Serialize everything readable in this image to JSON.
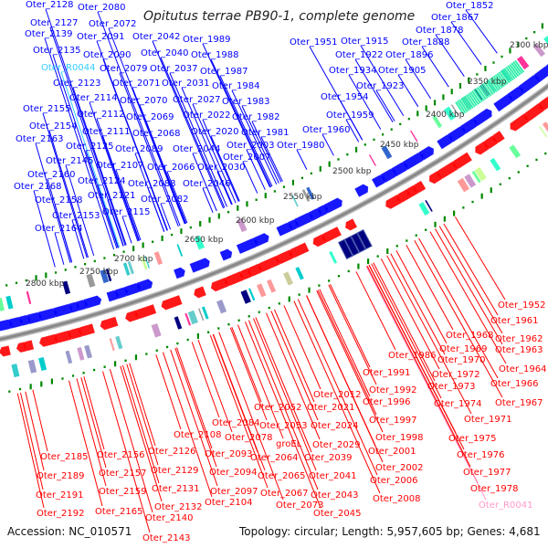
{
  "title": "Opitutus terrae PB90-1, complete genome",
  "footer": {
    "accession": "Accession: NC_010571",
    "summary": "Topology: circular; Length: 5,957,605 bp; Genes: 4,681"
  },
  "colors": {
    "forward": "#0000ff",
    "reverse": "#ff0000",
    "rna_forward": "#33ccff",
    "rna_reverse": "#ff99cc",
    "backbone": "#888888",
    "gc_marks": "#008800"
  },
  "ticks": [
    "2300 kbp",
    "2350 kbp",
    "2400 kbp",
    "2450 kbp",
    "2500 kbp",
    "2550 kbp",
    "2600 kbp",
    "2650 kbp",
    "2700 kbp",
    "2750 kbp",
    "2800 kbp"
  ],
  "forward_labels": [
    "Oter_2128",
    "Oter_2080",
    "Oter_2127",
    "Oter_2072",
    "Oter_2139",
    "Oter_2091",
    "Oter_2042",
    "Oter_1989",
    "Oter_2135",
    "Oter_2090",
    "Oter_2040",
    "Oter_1988",
    "Oter_R0044",
    "Oter_2079",
    "Oter_2037",
    "Oter_1987",
    "Oter_2123",
    "Oter_2071",
    "Oter_2031",
    "Oter_1984",
    "Oter_2114",
    "Oter_2070",
    "Oter_2027",
    "Oter_1983",
    "Oter_2155",
    "Oter_2112",
    "Oter_2069",
    "Oter_2022",
    "Oter_1982",
    "Oter_2154",
    "Oter_2111",
    "Oter_2068",
    "Oter_2020",
    "Oter_1981",
    "Oter_2163",
    "Oter_2125",
    "Oter_2089",
    "Oter_2044",
    "Oter_2003",
    "Oter_2145",
    "Oter_2107",
    "Oter_2066",
    "Oter_2030",
    "Oter_2007",
    "Oter_1980",
    "Oter_2160",
    "Oter_2124",
    "Oter_2088",
    "Oter_2046",
    "Oter_2168",
    "Oter_2158",
    "Oter_2121",
    "Oter_2082",
    "Oter_2153",
    "Oter_2115",
    "Oter_2164",
    "Oter_1852",
    "Oter_1867",
    "Oter_1878",
    "Oter_1888",
    "Oter_1951",
    "Oter_1915",
    "Oter_1922",
    "Oter_1896",
    "Oter_1934",
    "Oter_1905",
    "Oter_1923",
    "Oter_1954",
    "Oter_1959",
    "Oter_1960"
  ],
  "reverse_labels": [
    "Oter_1952",
    "Oter_1961",
    "Oter_1968",
    "Oter_1962",
    "Oter_1963",
    "Oter_1986",
    "Oter_1969",
    "Oter_1970",
    "Oter_1964",
    "Oter_1991",
    "Oter_1972",
    "Oter_1966",
    "Oter_1973",
    "Oter_1992",
    "Oter_1996",
    "Oter_1967",
    "Oter_1974",
    "Oter_1971",
    "Oter_1997",
    "Oter_1998",
    "Oter_1975",
    "Oter_2001",
    "Oter_1976",
    "Oter_2002",
    "Oter_1977",
    "Oter_2006",
    "Oter_1978",
    "Oter_2008",
    "Oter_R0041",
    "Oter_2012",
    "Oter_2021",
    "Oter_2052",
    "Oter_2024",
    "Oter_2053",
    "Oter_2029",
    "groEL",
    "Oter_2064",
    "Oter_2039",
    "Oter_2065",
    "Oter_2041",
    "Oter_2067",
    "Oter_2043",
    "Oter_2073",
    "Oter_2045",
    "Oter_2108",
    "Oter_2084",
    "Oter_2078",
    "Oter_2093",
    "Oter_2094",
    "Oter_2097",
    "Oter_2104",
    "Oter_2126",
    "Oter_2129",
    "Oter_2131",
    "Oter_2132",
    "Oter_2140",
    "Oter_2143",
    "Oter_2156",
    "Oter_2157",
    "Oter_2159",
    "Oter_2165",
    "Oter_2185",
    "Oter_2189",
    "Oter_2191",
    "Oter_2192"
  ]
}
